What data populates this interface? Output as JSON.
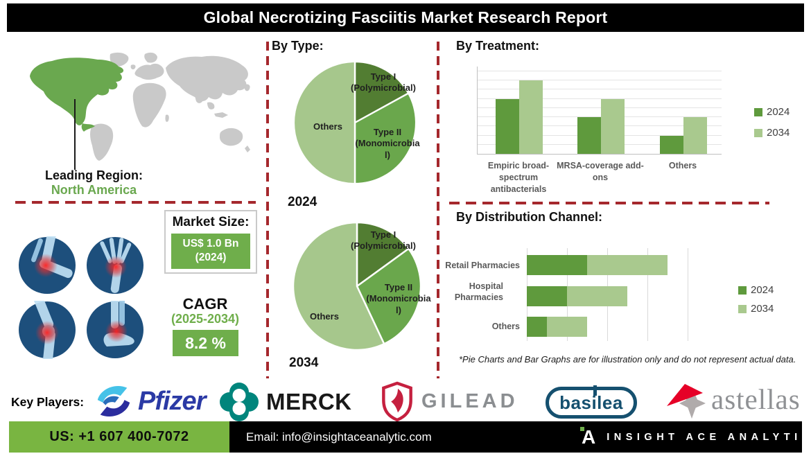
{
  "title": "Global Necrotizing Fasciitis Market Research Report",
  "sections": {
    "by_type": "By Type:",
    "by_treatment": "By Treatment:",
    "by_distribution": "By Distribution Channel:"
  },
  "leading_region": {
    "label": "Leading Region:",
    "value": "North America"
  },
  "market_size": {
    "label": "Market Size:",
    "value": "US$ 1.0 Bn",
    "year": "(2024)"
  },
  "cagr": {
    "label": "CAGR",
    "period": "(2025-2034)",
    "value": "8.2 %"
  },
  "pie_years": {
    "y2024": "2024",
    "y2034": "2034"
  },
  "footnote": "*Pie Charts and Bar Graphs are for illustration only and do not represent actual data.",
  "key_players": {
    "label": "Key Players:",
    "companies": [
      "Pfizer",
      "MERCK",
      "GILEAD",
      "basilea",
      "astellas"
    ]
  },
  "footer": {
    "phone": "US: +1 607 400-7072",
    "email": "Email: info@insightaceanalytic.com",
    "brand": "INSIGHT ACE ANALYTIC",
    "brand_initial": "A"
  },
  "colors": {
    "pie_dark_green": "#527d32",
    "pie_mid_green": "#6aa74c",
    "pie_light_green": "#a6c78c",
    "bar_green_2024": "#5f9a3d",
    "bar_green_2034": "#a9c98e",
    "accent_green": "#6fae4b",
    "footer_green": "#79b541",
    "dash_red": "#a5282d",
    "map_green": "#6aa84f",
    "map_gray": "#c9c9c9"
  },
  "chart_data": [
    {
      "type": "pie",
      "title": "By Type:",
      "year_label": "2024",
      "labels": [
        "Type I (Polymicrobial)",
        "Type II (Monomicrobial)",
        "Others"
      ],
      "values": [
        17,
        33,
        50
      ],
      "colors": [
        "#527d32",
        "#6aa74c",
        "#a6c78c"
      ]
    },
    {
      "type": "pie",
      "title": "By Type:",
      "year_label": "2034",
      "labels": [
        "Type I (Polymicrobial)",
        "Type II (Monomicrobial)",
        "Others"
      ],
      "values": [
        15,
        28,
        57
      ],
      "colors": [
        "#527d32",
        "#6aa74c",
        "#a6c78c"
      ]
    },
    {
      "type": "bar",
      "title": "By Treatment:",
      "categories": [
        "Empiric broad-spectrum antibacterials",
        "MRSA-coverage add-ons",
        "Others"
      ],
      "series": [
        {
          "name": "2024",
          "color": "#5f9a3d",
          "values": [
            60,
            40,
            20
          ]
        },
        {
          "name": "2034",
          "color": "#a9c98e",
          "values": [
            80,
            60,
            40
          ]
        }
      ],
      "ylim": [
        0,
        95
      ],
      "gridline_step": 10,
      "grid": true,
      "legend_position": "right"
    },
    {
      "type": "bar-horizontal-stacked",
      "title": "By Distribution Channel:",
      "categories": [
        "Retail Pharmacies",
        "Hospital Pharmacies",
        "Others"
      ],
      "series": [
        {
          "name": "2024",
          "color": "#5f9a3d",
          "values": [
            30,
            20,
            10
          ]
        },
        {
          "name": "2034",
          "color": "#a9c98e",
          "values": [
            40,
            30,
            20
          ]
        }
      ],
      "xlim": [
        0,
        80
      ],
      "gridline_step": 20,
      "grid": true,
      "legend_position": "right"
    }
  ]
}
